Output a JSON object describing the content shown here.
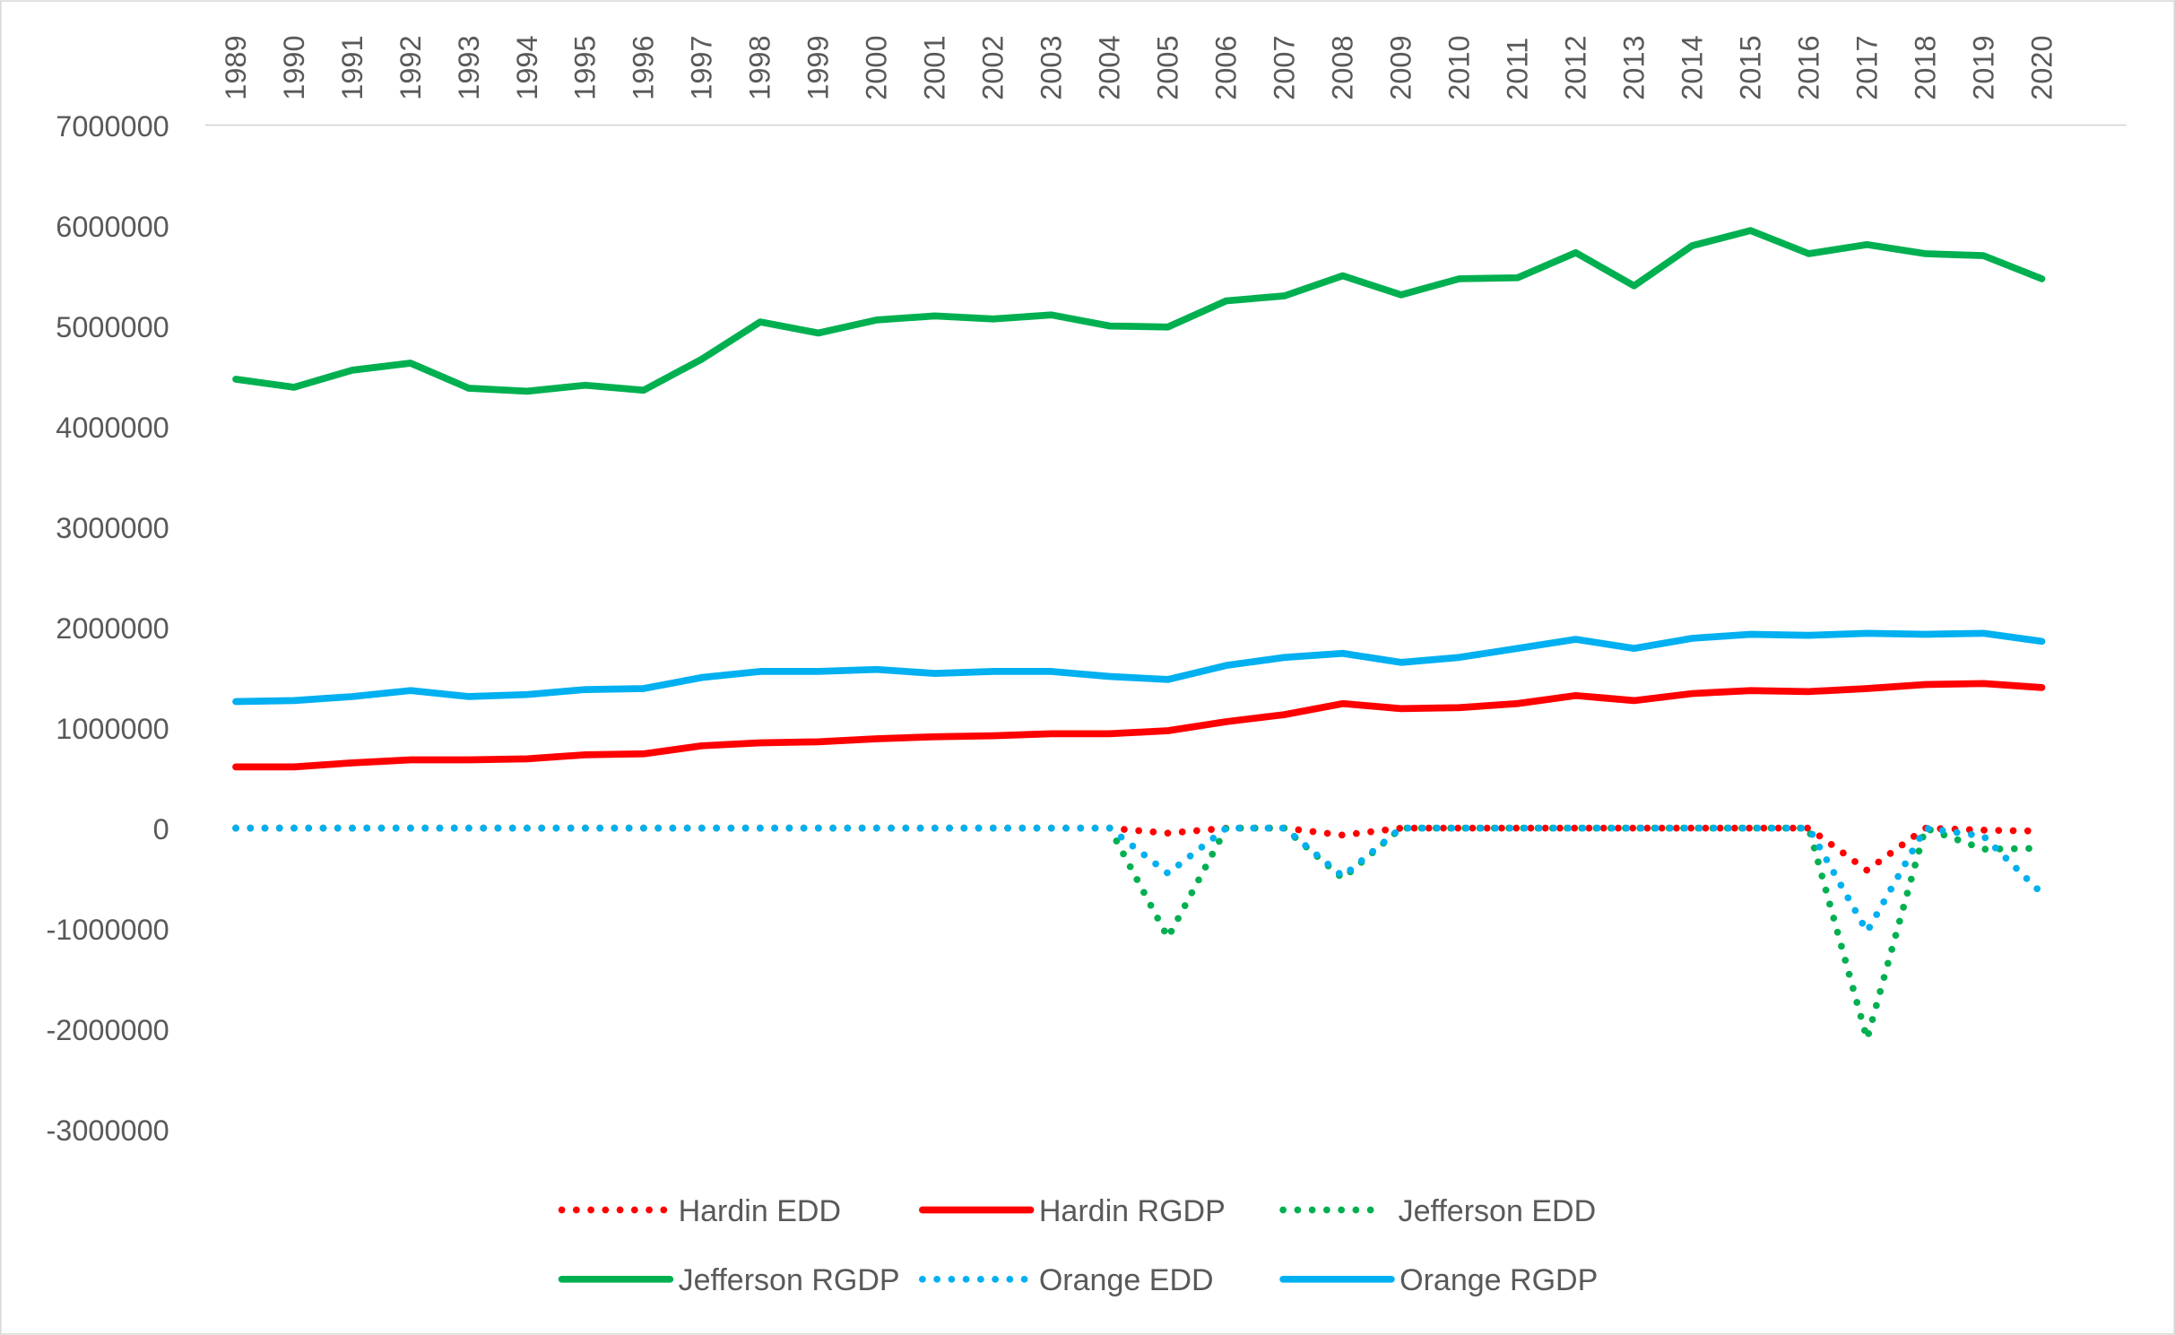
{
  "chart_data": {
    "type": "line",
    "title": "",
    "xlabel": "",
    "ylabel": "",
    "ylim": [
      -3000000,
      7000000
    ],
    "yticks": [
      7000000,
      6000000,
      5000000,
      4000000,
      3000000,
      2000000,
      1000000,
      0,
      -1000000,
      -2000000,
      -3000000
    ],
    "ytick_labels": [
      "7000000",
      "6000000",
      "5000000",
      "4000000",
      "3000000",
      "2000000",
      "1000000",
      "0",
      "-1000000",
      "-2000000",
      "-3000000"
    ],
    "x_axis_position": "top",
    "grid": "top line only",
    "legend_position": "bottom",
    "categories": [
      "1989",
      "1990",
      "1991",
      "1992",
      "1993",
      "1994",
      "1995",
      "1996",
      "1997",
      "1998",
      "1999",
      "2000",
      "2001",
      "2002",
      "2003",
      "2004",
      "2005",
      "2006",
      "2007",
      "2008",
      "2009",
      "2010",
      "2011",
      "2012",
      "2013",
      "2014",
      "2015",
      "2016",
      "2017",
      "2018",
      "2019",
      "2020"
    ],
    "series": [
      {
        "name": "Hardin EDD",
        "color": "#FF0000",
        "style": "dotted",
        "values": [
          0,
          0,
          0,
          0,
          0,
          0,
          0,
          0,
          0,
          0,
          0,
          0,
          0,
          0,
          0,
          0,
          -50000,
          0,
          0,
          -70000,
          0,
          0,
          0,
          0,
          0,
          0,
          0,
          0,
          -420000,
          0,
          -20000,
          -30000
        ]
      },
      {
        "name": "Hardin RGDP",
        "color": "#FF0000",
        "style": "solid",
        "values": [
          610000,
          610000,
          650000,
          680000,
          680000,
          690000,
          730000,
          740000,
          820000,
          850000,
          860000,
          890000,
          910000,
          920000,
          940000,
          940000,
          970000,
          1060000,
          1130000,
          1240000,
          1190000,
          1200000,
          1240000,
          1320000,
          1270000,
          1340000,
          1370000,
          1360000,
          1390000,
          1430000,
          1440000,
          1400000
        ]
      },
      {
        "name": "Jefferson EDD",
        "color": "#00B050",
        "style": "dotted",
        "values": [
          0,
          0,
          0,
          0,
          0,
          0,
          0,
          0,
          0,
          0,
          0,
          0,
          0,
          0,
          0,
          0,
          -1090000,
          0,
          0,
          -500000,
          0,
          0,
          0,
          0,
          0,
          0,
          0,
          0,
          -2100000,
          0,
          -210000,
          -200000
        ]
      },
      {
        "name": "Jefferson RGDP",
        "color": "#00B050",
        "style": "solid",
        "values": [
          4470000,
          4390000,
          4560000,
          4630000,
          4380000,
          4350000,
          4410000,
          4360000,
          4670000,
          5040000,
          4930000,
          5060000,
          5100000,
          5070000,
          5110000,
          5000000,
          4990000,
          5250000,
          5300000,
          5500000,
          5310000,
          5470000,
          5480000,
          5730000,
          5400000,
          5800000,
          5950000,
          5720000,
          5810000,
          5720000,
          5700000,
          5470000
        ]
      },
      {
        "name": "Orange EDD",
        "color": "#00B0F0",
        "style": "dotted",
        "values": [
          0,
          0,
          0,
          0,
          0,
          0,
          0,
          0,
          0,
          0,
          0,
          0,
          0,
          0,
          0,
          0,
          -450000,
          0,
          0,
          -480000,
          0,
          0,
          0,
          0,
          0,
          0,
          0,
          0,
          -1030000,
          0,
          -80000,
          -650000
        ]
      },
      {
        "name": "Orange RGDP",
        "color": "#00B0F0",
        "style": "solid",
        "values": [
          1260000,
          1270000,
          1310000,
          1370000,
          1310000,
          1330000,
          1380000,
          1390000,
          1500000,
          1560000,
          1560000,
          1580000,
          1540000,
          1560000,
          1560000,
          1510000,
          1480000,
          1620000,
          1700000,
          1740000,
          1650000,
          1700000,
          1790000,
          1880000,
          1790000,
          1890000,
          1930000,
          1920000,
          1940000,
          1930000,
          1940000,
          1860000
        ]
      }
    ]
  }
}
